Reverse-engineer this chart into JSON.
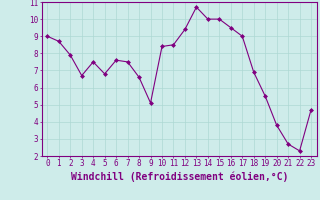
{
  "x": [
    0,
    1,
    2,
    3,
    4,
    5,
    6,
    7,
    8,
    9,
    10,
    11,
    12,
    13,
    14,
    15,
    16,
    17,
    18,
    19,
    20,
    21,
    22,
    23
  ],
  "y": [
    9.0,
    8.7,
    7.9,
    6.7,
    7.5,
    6.8,
    7.6,
    7.5,
    6.6,
    5.1,
    8.4,
    8.5,
    9.4,
    10.7,
    10.0,
    10.0,
    9.5,
    9.0,
    6.9,
    5.5,
    3.8,
    2.7,
    2.3,
    4.7
  ],
  "line_color": "#800080",
  "marker": "D",
  "marker_size": 2,
  "bg_color": "#ceecea",
  "grid_color": "#aed8d4",
  "xlabel": "Windchill (Refroidissement éolien,°C)",
  "xlim": [
    -0.5,
    23.5
  ],
  "ylim": [
    2,
    11
  ],
  "yticks": [
    2,
    3,
    4,
    5,
    6,
    7,
    8,
    9,
    10,
    11
  ],
  "xticks": [
    0,
    1,
    2,
    3,
    4,
    5,
    6,
    7,
    8,
    9,
    10,
    11,
    12,
    13,
    14,
    15,
    16,
    17,
    18,
    19,
    20,
    21,
    22,
    23
  ],
  "tick_fontsize": 5.5,
  "xlabel_fontsize": 7.0,
  "linewidth": 0.8
}
